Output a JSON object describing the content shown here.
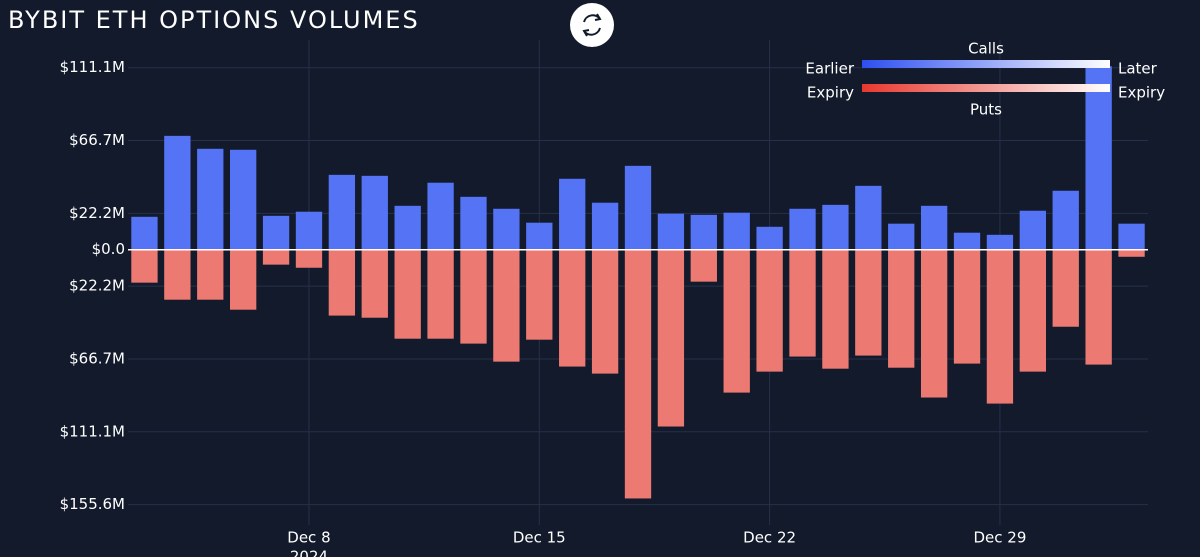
{
  "chart_data": {
    "type": "diverging_bar",
    "title": "BYBIT ETH OPTIONS VOLUMES",
    "x": [
      "2024-12-03",
      "2024-12-04",
      "2024-12-05",
      "2024-12-06",
      "2024-12-07",
      "2024-12-08",
      "2024-12-09",
      "2024-12-10",
      "2024-12-11",
      "2024-12-12",
      "2024-12-13",
      "2024-12-14",
      "2024-12-15",
      "2024-12-16",
      "2024-12-17",
      "2024-12-18",
      "2024-12-19",
      "2024-12-20",
      "2024-12-21",
      "2024-12-22",
      "2024-12-23",
      "2024-12-24",
      "2024-12-25",
      "2024-12-26",
      "2024-12-27",
      "2024-12-28",
      "2024-12-29",
      "2024-12-30",
      "2024-12-31",
      "2025-01-01",
      "2025-01-02"
    ],
    "series": [
      {
        "name": "Calls",
        "color": "#5473f5",
        "gradient": [
          "#2e4ff0",
          "#ffffff"
        ],
        "values": [
          20.1,
          69.5,
          61.6,
          61.0,
          20.7,
          23.2,
          45.7,
          45.1,
          26.8,
          40.9,
          32.3,
          25.0,
          16.5,
          43.3,
          28.7,
          51.2,
          22.0,
          21.3,
          22.6,
          14.0,
          25.0,
          27.4,
          39.0,
          15.9,
          26.8,
          10.4,
          9.1,
          23.8,
          36.0,
          112.0,
          15.9
        ]
      },
      {
        "name": "Puts",
        "color": "#ec7a72",
        "gradient": [
          "#e8382e",
          "#ffffff"
        ],
        "values": [
          -20.1,
          -30.5,
          -30.5,
          -36.6,
          -9.1,
          -11.0,
          -40.2,
          -41.5,
          -54.3,
          -54.3,
          -57.3,
          -68.3,
          -54.9,
          -71.3,
          -75.6,
          -151.8,
          -107.9,
          -19.5,
          -87.2,
          -74.4,
          -65.2,
          -72.6,
          -64.6,
          -72.0,
          -90.2,
          -69.5,
          -93.9,
          -74.4,
          -47.0,
          -70.1,
          -4.3
        ]
      }
    ],
    "legend": {
      "start": [
        "Earlier",
        "Expiry"
      ],
      "end": [
        "Later",
        "Expiry"
      ]
    },
    "xlim": [
      "2024-12-02T12:00:00Z",
      "2025-01-02T12:00:00Z"
    ],
    "xticks": [
      {
        "value": "2024-12-08",
        "label": "Dec 8"
      },
      {
        "value": "2024-12-15",
        "label": "Dec 15"
      },
      {
        "value": "2024-12-22",
        "label": "Dec 22"
      },
      {
        "value": "2024-12-29",
        "label": "Dec 29"
      }
    ],
    "x_year_label": "2024",
    "ylim": [
      -168,
      128
    ],
    "yticks": [
      {
        "value": 111.1,
        "label": "$111.1M"
      },
      {
        "value": 66.7,
        "label": "$66.7M"
      },
      {
        "value": 22.2,
        "label": "$22.2M"
      },
      {
        "value": 0,
        "label": "$0.0"
      },
      {
        "value": -22.2,
        "label": "$22.2M"
      },
      {
        "value": -66.7,
        "label": "$66.7M"
      },
      {
        "value": -111.1,
        "label": "$111.1M"
      },
      {
        "value": -155.6,
        "label": "$155.6M"
      }
    ],
    "grid": true
  }
}
